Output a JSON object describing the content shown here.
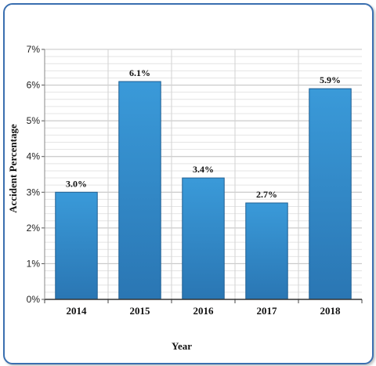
{
  "chart_data": {
    "type": "bar",
    "categories": [
      "2014",
      "2015",
      "2016",
      "2017",
      "2018"
    ],
    "values": [
      3.0,
      6.1,
      3.4,
      2.7,
      5.9
    ],
    "data_labels": [
      "3.0%",
      "6.1%",
      "3.4%",
      "2.7%",
      "5.9%"
    ],
    "title": "",
    "xlabel": "Year",
    "ylabel": "Accident Percentage",
    "ylim": [
      0,
      7
    ],
    "yticks": [
      0,
      1,
      2,
      3,
      4,
      5,
      6,
      7
    ],
    "ytick_labels": [
      "0%",
      "1%",
      "2%",
      "3%",
      "4%",
      "5%",
      "6%",
      "7%"
    ],
    "grid": true,
    "legend": "none",
    "colors": {
      "bar": "#2f86c6",
      "bar_edge": "#1f5f93",
      "frame": "#3a6fb0"
    }
  }
}
